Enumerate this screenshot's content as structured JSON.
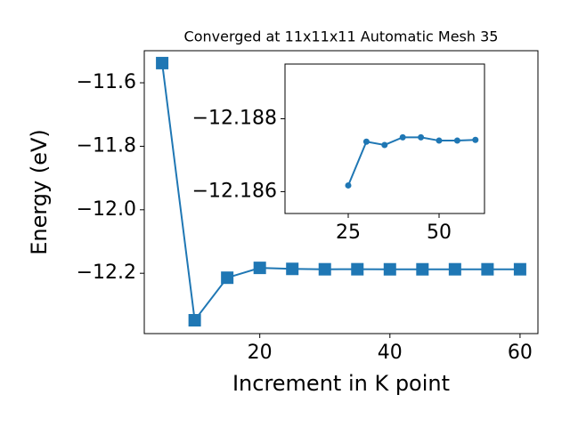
{
  "chart_data": [
    {
      "type": "line",
      "title": "Converged at 11x11x11 Automatic Mesh 35",
      "xlabel": "Increment in K point",
      "ylabel": "Energy (eV)",
      "x": [
        5,
        10,
        15,
        20,
        25,
        30,
        35,
        40,
        45,
        50,
        55,
        60
      ],
      "series": [
        {
          "color": "#1f77b4",
          "marker": "square",
          "values": [
            -11.538,
            -12.348,
            -12.214,
            -12.183,
            -12.1862,
            -12.1874,
            -12.1873,
            -12.1875,
            -12.1875,
            -12.1874,
            -12.1874,
            -12.1874
          ]
        }
      ],
      "xlim": [
        2.25,
        62.75
      ],
      "xticks": [
        20,
        40,
        60
      ],
      "ylim": [
        -12.39,
        -11.499
      ],
      "yticks": [
        {
          "value": -11.6,
          "label": "−11.6"
        },
        {
          "value": -11.8,
          "label": "−11.8"
        },
        {
          "value": -12.0,
          "label": "−12.0"
        },
        {
          "value": -12.2,
          "label": "−12.2"
        }
      ]
    },
    {
      "type": "line",
      "x": [
        25,
        30,
        35,
        40,
        45,
        50,
        55,
        60
      ],
      "series": [
        {
          "color": "#1f77b4",
          "marker": "circle",
          "values": [
            -12.18617,
            -12.18737,
            -12.18728,
            -12.18749,
            -12.18749,
            -12.1874,
            -12.1874,
            -12.18742
          ]
        }
      ],
      "xlim": [
        7.6,
        62.5
      ],
      "xticks": [
        25,
        50
      ],
      "ylim": [
        -12.1854,
        -12.1895
      ],
      "yticks": [
        {
          "value": -12.188,
          "label": "−12.188"
        },
        {
          "value": -12.186,
          "label": "−12.186"
        }
      ]
    }
  ]
}
